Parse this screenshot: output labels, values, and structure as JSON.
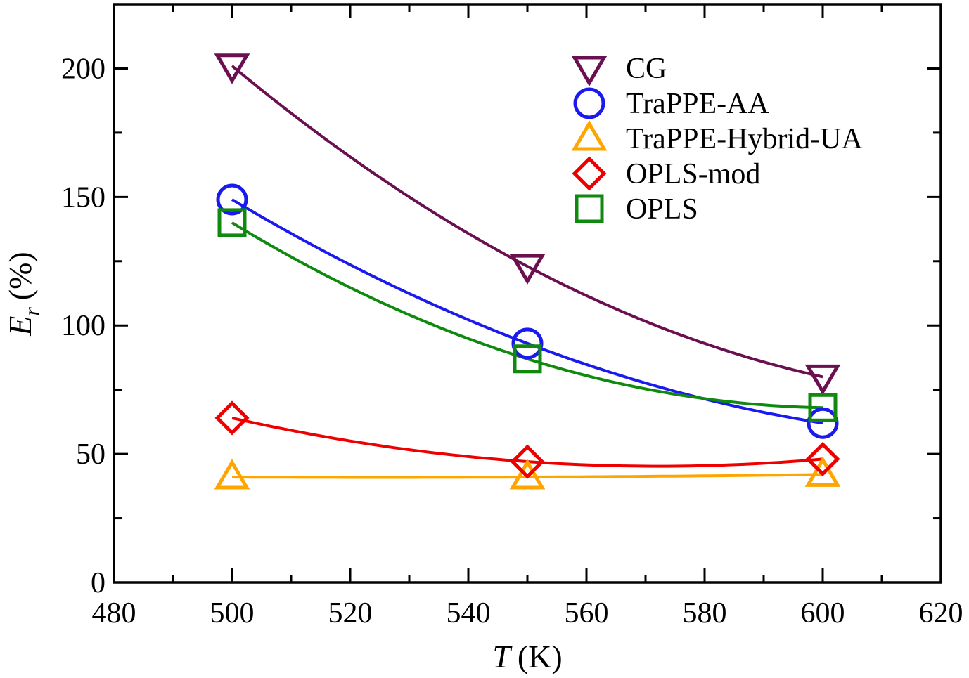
{
  "chart_data": {
    "type": "line",
    "title": "",
    "xlabel": {
      "symbol": "T",
      "unit": "(K)"
    },
    "ylabel": {
      "symbol": "E",
      "subscript": "r",
      "unit": "(%)"
    },
    "xlim": [
      480,
      620
    ],
    "ylim": [
      0,
      225
    ],
    "xticks": [
      480,
      500,
      520,
      540,
      560,
      580,
      600,
      620
    ],
    "yticks": [
      0,
      50,
      100,
      150,
      200
    ],
    "legend_position": "top-right",
    "x": [
      500,
      550,
      600
    ],
    "series": [
      {
        "name": "CG",
        "marker": "triangle-down",
        "color": "#6a1050",
        "values": [
          201,
          123,
          80
        ]
      },
      {
        "name": "TraPPE-AA",
        "marker": "circle",
        "color": "#1a1aee",
        "values": [
          149,
          93,
          62
        ]
      },
      {
        "name": "TraPPE-Hybrid-UA",
        "marker": "triangle-up",
        "color": "#ffa500",
        "values": [
          41,
          41,
          42
        ]
      },
      {
        "name": "OPLS-mod",
        "marker": "diamond",
        "color": "#ee0000",
        "values": [
          64,
          47,
          48
        ]
      },
      {
        "name": "OPLS",
        "marker": "square",
        "color": "#0f8a0f",
        "values": [
          140,
          87,
          68
        ]
      }
    ]
  }
}
